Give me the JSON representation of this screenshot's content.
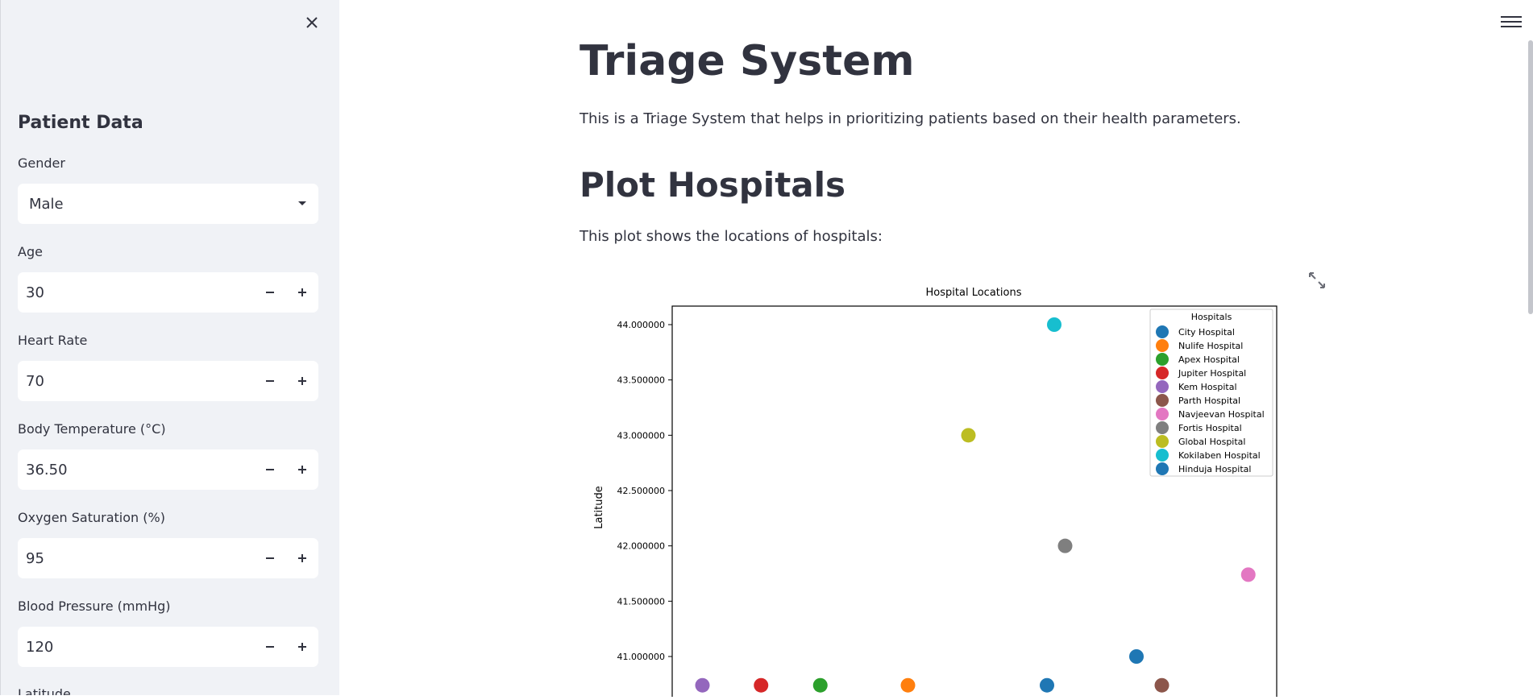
{
  "sidebar": {
    "header": "Patient Data",
    "gender": {
      "label": "Gender",
      "value": "Male"
    },
    "age": {
      "label": "Age",
      "value": "30"
    },
    "heart_rate": {
      "label": "Heart Rate",
      "value": "70"
    },
    "body_temp": {
      "label": "Body Temperature (°C)",
      "value": "36.50"
    },
    "oxygen": {
      "label": "Oxygen Saturation (%)",
      "value": "95"
    },
    "blood_pressure": {
      "label": "Blood Pressure (mmHg)",
      "value": "120"
    },
    "latitude": {
      "label": "Latitude"
    }
  },
  "main": {
    "title": "Triage System",
    "description": "This is a Triage System that helps in prioritizing patients based on their health parameters.",
    "section_title": "Plot Hospitals",
    "section_description": "This plot shows the locations of hospitals:"
  },
  "chart_data": {
    "type": "scatter",
    "title": "Hospital Locations",
    "xlabel": "",
    "ylabel": "Latitude",
    "y_ticks": [
      "41.000000",
      "41.500000",
      "42.000000",
      "42.500000",
      "43.000000",
      "43.500000",
      "44.000000"
    ],
    "legend_title": "Hospitals",
    "legend_position": "top-right",
    "series": [
      {
        "name": "City Hospital",
        "color": "#1f77b4",
        "x": 0.62,
        "y": 40.74
      },
      {
        "name": "Nulife Hospital",
        "color": "#ff7f0e",
        "x": 0.39,
        "y": 40.74
      },
      {
        "name": "Apex Hospital",
        "color": "#2ca02c",
        "x": 0.245,
        "y": 40.74
      },
      {
        "name": "Jupiter Hospital",
        "color": "#d62728",
        "x": 0.147,
        "y": 40.74
      },
      {
        "name": "Kem Hospital",
        "color": "#9467bd",
        "x": 0.05,
        "y": 40.74
      },
      {
        "name": "Parth Hospital",
        "color": "#8c564b",
        "x": 0.81,
        "y": 40.74
      },
      {
        "name": "Navjeevan Hospital",
        "color": "#e377c2",
        "x": 0.953,
        "y": 41.74
      },
      {
        "name": "Fortis Hospital",
        "color": "#7f7f7f",
        "x": 0.65,
        "y": 42.0
      },
      {
        "name": "Global Hospital",
        "color": "#bcbd22",
        "x": 0.49,
        "y": 43.0
      },
      {
        "name": "Kokilaben Hospital",
        "color": "#17becf",
        "x": 0.632,
        "y": 44.0
      },
      {
        "name": "Hinduja Hospital",
        "color": "#1f77b4",
        "x": 0.768,
        "y": 41.0
      }
    ]
  }
}
